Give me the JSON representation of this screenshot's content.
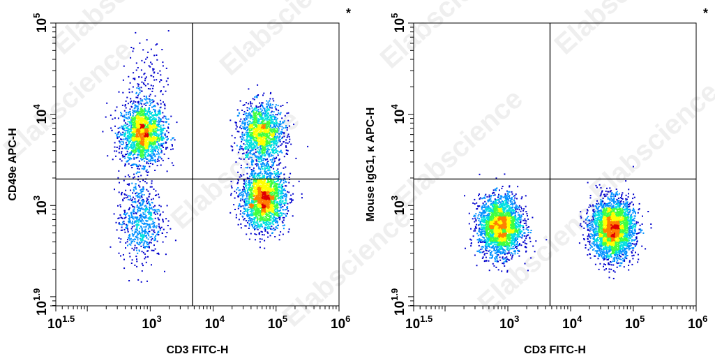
{
  "watermark": "Elabscience",
  "chart_data": [
    {
      "type": "scatter",
      "style": "density-dot-plot",
      "title": "",
      "xlabel": "CD3 FITC-H",
      "ylabel": "CD49e APC-H",
      "xscale": "log",
      "yscale": "log",
      "xlim": [
        31.6,
        1000000
      ],
      "ylim": [
        79.4,
        100000
      ],
      "x_ticks": [
        {
          "base": "10",
          "exp": "1.5",
          "value": 31.6
        },
        {
          "base": "10",
          "exp": "3",
          "value": 1000
        },
        {
          "base": "10",
          "exp": "4",
          "value": 10000
        },
        {
          "base": "10",
          "exp": "5",
          "value": 100000
        },
        {
          "base": "10",
          "exp": "6",
          "value": 1000000
        }
      ],
      "y_ticks": [
        {
          "base": "10",
          "exp": "1.9",
          "value": 79.4
        },
        {
          "base": "10",
          "exp": "3",
          "value": 1000
        },
        {
          "base": "10",
          "exp": "4",
          "value": 10000
        },
        {
          "base": "10",
          "exp": "5",
          "value": 100000
        }
      ],
      "gate_x": 4700,
      "gate_y": 1950,
      "marker": "*",
      "populations": [
        {
          "x": 750,
          "y": 6200,
          "n": 1900
        },
        {
          "x": 680,
          "y": 700,
          "n": 650
        },
        {
          "x": 58000,
          "y": 6300,
          "n": 1500
        },
        {
          "x": 62000,
          "y": 1200,
          "n": 2200
        },
        {
          "x": 900,
          "y": 25000,
          "n": 130
        }
      ],
      "colormap": [
        "#0000cc",
        "#0090ff",
        "#00e0e0",
        "#40ff40",
        "#ffff00",
        "#ff8000",
        "#e00000"
      ]
    },
    {
      "type": "scatter",
      "style": "density-dot-plot",
      "title": "",
      "xlabel": "CD3 FITC-H",
      "ylabel": "Mouse IgG1, κ APC-H",
      "xscale": "log",
      "yscale": "log",
      "xlim": [
        31.6,
        1000000
      ],
      "ylim": [
        79.4,
        100000
      ],
      "x_ticks": [
        {
          "base": "10",
          "exp": "1.5",
          "value": 31.6
        },
        {
          "base": "10",
          "exp": "3",
          "value": 1000
        },
        {
          "base": "10",
          "exp": "4",
          "value": 10000
        },
        {
          "base": "10",
          "exp": "5",
          "value": 100000
        },
        {
          "base": "10",
          "exp": "6",
          "value": 1000000
        }
      ],
      "y_ticks": [
        {
          "base": "10",
          "exp": "1.9",
          "value": 79.4
        },
        {
          "base": "10",
          "exp": "3",
          "value": 1000
        },
        {
          "base": "10",
          "exp": "4",
          "value": 10000
        },
        {
          "base": "10",
          "exp": "5",
          "value": 100000
        }
      ],
      "gate_x": 4700,
      "gate_y": 1950,
      "marker": "*",
      "populations": [
        {
          "x": 750,
          "y": 600,
          "n": 2600
        },
        {
          "x": 46000,
          "y": 560,
          "n": 3000
        }
      ],
      "colormap": [
        "#0000cc",
        "#0090ff",
        "#00e0e0",
        "#40ff40",
        "#ffff00",
        "#ff8000",
        "#e00000"
      ]
    }
  ]
}
